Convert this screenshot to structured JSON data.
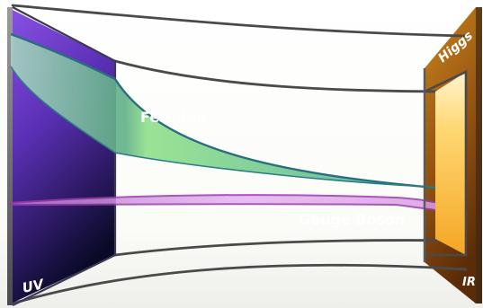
{
  "labels": {
    "uv": "UV",
    "ir": "IR",
    "higgs": "Higgs",
    "fermion": "Fermion",
    "gauge_boson": "Gauge Boson"
  },
  "colors": {
    "uv_brane_top": "#8a4fe0",
    "uv_brane_bottom": "#0c0c2e",
    "ir_brane_light": "#ffd66b",
    "ir_brane_dark": "#6b3408",
    "fermion_profile": "#2f8f6a",
    "gauge_profile": "#a13bb8",
    "bulk_lines": "#4a4a4a"
  }
}
